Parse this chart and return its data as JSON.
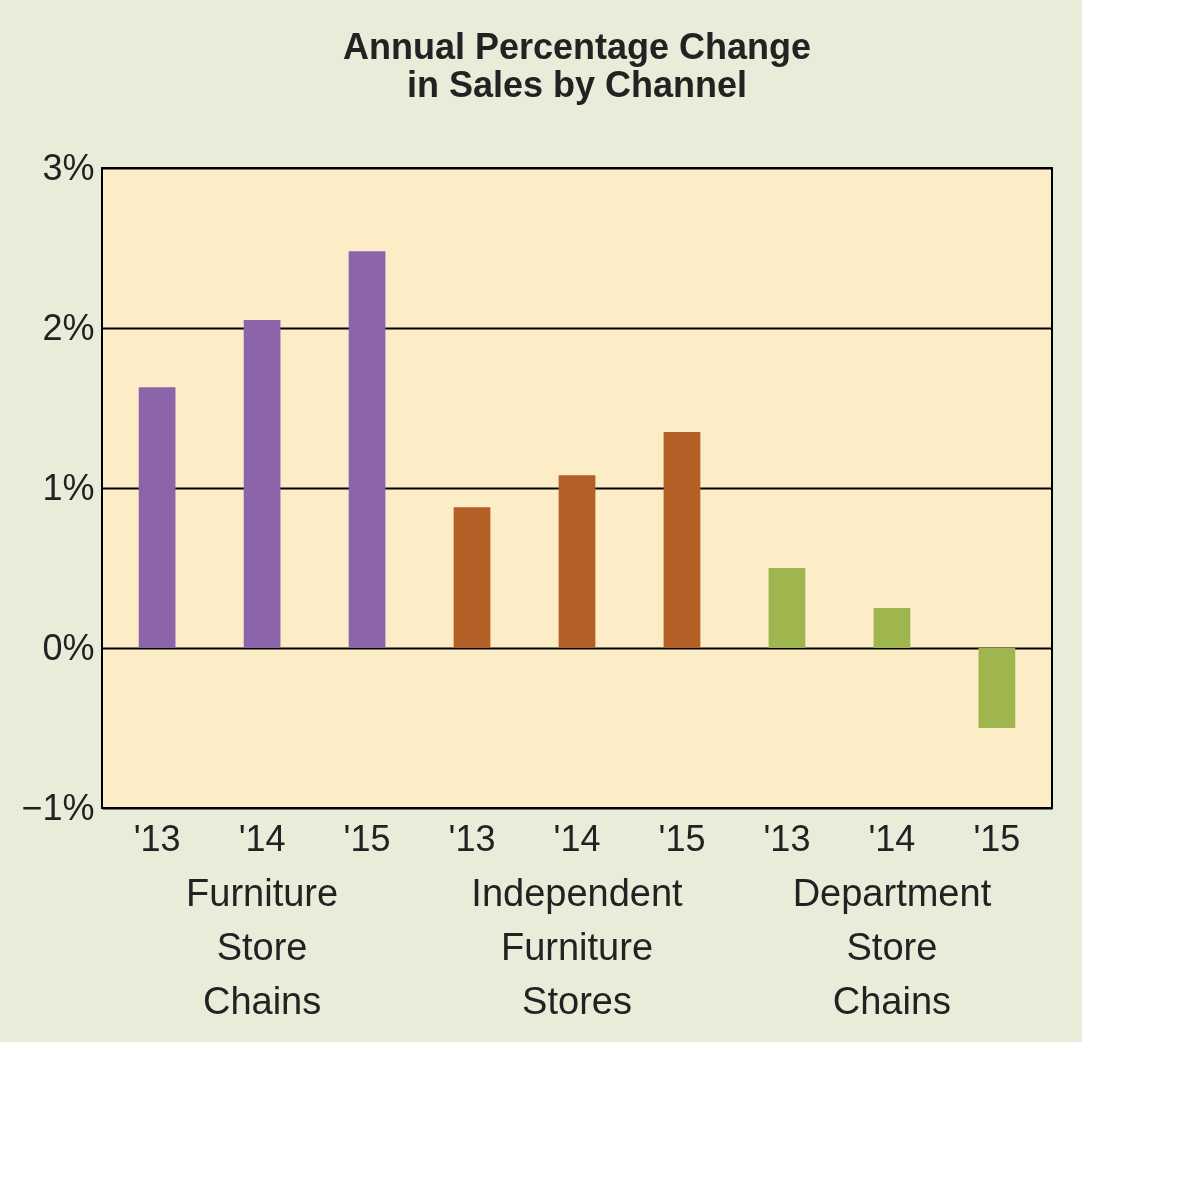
{
  "chart_data": {
    "type": "bar",
    "title": "Annual Percentage Change in Sales by Channel",
    "categories": [
      "'13",
      "'14",
      "'15",
      "'13",
      "'14",
      "'15",
      "'13",
      "'14",
      "'15"
    ],
    "series": [
      {
        "color": "#8b64aa",
        "values": [
          1.63,
          2.05,
          2.48,
          null,
          null,
          null,
          null,
          null,
          null
        ]
      },
      {
        "color": "#b26026",
        "values": [
          null,
          null,
          null,
          0.88,
          1.08,
          1.35,
          null,
          null,
          null
        ]
      },
      {
        "color": "#9fb64e",
        "values": [
          null,
          null,
          null,
          null,
          null,
          null,
          0.5,
          0.25,
          -0.5
        ]
      }
    ],
    "annotations": [
      "Furniture Store Chains",
      "Independent Furniture Stores",
      "Department Store Chains"
    ],
    "ylim": [
      -1,
      3
    ],
    "yticks": [
      {
        "value": -1,
        "label": "−1%"
      },
      {
        "value": 0,
        "label": "0%"
      },
      {
        "value": 1,
        "label": "1%"
      },
      {
        "value": 2,
        "label": "2%"
      },
      {
        "value": 3,
        "label": "3%"
      }
    ],
    "grid": "y"
  }
}
